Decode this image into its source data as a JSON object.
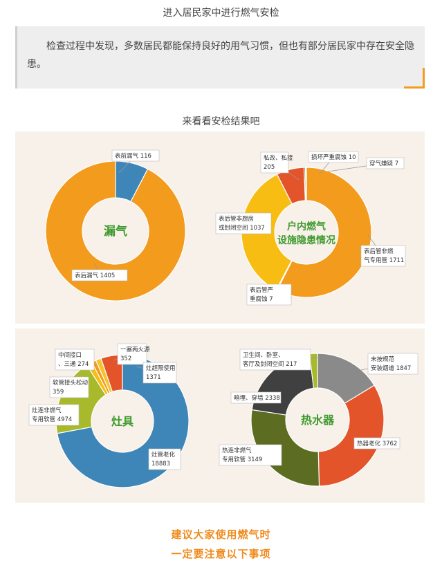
{
  "header": {
    "title": "进入居民家中进行燃气安检",
    "quote": "检查过程中发现，多数居民都能保持良好的用气习惯，但也有部分居民家中存在安全隐患。",
    "results_title": "来看看安检结果吧"
  },
  "footer": {
    "line1": "建议大家使用燃气时",
    "line2": "一定要注意以下事项"
  },
  "colors": {
    "orange": "#f39b1d",
    "blue": "#3f86b8",
    "yellow": "#f7bd12",
    "red": "#e3542b",
    "green_light": "#a8b92c",
    "green_dark": "#5c6d21",
    "gray_dark": "#404040",
    "gray_mid": "#8a8a8a",
    "panel_bg": "#f8f1ea",
    "accent_text": "#f08a1c"
  },
  "chart_data": [
    {
      "type": "pie",
      "center_label": "漏气",
      "slices": [
        {
          "label": "表前漏气",
          "value": 116,
          "color": "#3f86b8"
        },
        {
          "label": "表后漏气",
          "value": 1405,
          "color": "#f39b1d"
        }
      ]
    },
    {
      "type": "pie",
      "center_label": "户内燃气设施隐患情况",
      "slices": [
        {
          "label": "表后管非燃气专用管",
          "value": 1711,
          "color": "#f39b1d"
        },
        {
          "label": "表后管严重腐蚀",
          "value": 7,
          "color": "#f4c430"
        },
        {
          "label": "表后管非厨房或封闭空间",
          "value": 1037,
          "color": "#f7bd12"
        },
        {
          "label": "私改、私接",
          "value": 205,
          "color": "#e3542b"
        },
        {
          "label": "损坏严重腐蚀",
          "value": 10,
          "color": "#5c6d21"
        },
        {
          "label": "穿气嫌疑",
          "value": 7,
          "color": "#8a8a8a"
        }
      ]
    },
    {
      "type": "pie",
      "center_label": "灶具",
      "slices": [
        {
          "label": "灶管老化",
          "value": 18883,
          "color": "#3f86b8"
        },
        {
          "label": "灶连非燃气专用软管",
          "value": 4974,
          "color": "#a8b92c"
        },
        {
          "label": "软管接头松动",
          "value": 359,
          "color": "#f7bd12"
        },
        {
          "label": "中间接口、三通",
          "value": 274,
          "color": "#f39b1d"
        },
        {
          "label": "一塞两火源",
          "value": 352,
          "color": "#f4c430"
        },
        {
          "label": "灶超限使用",
          "value": 1371,
          "color": "#e3542b"
        }
      ]
    },
    {
      "type": "pie",
      "center_label": "热水器",
      "slices": [
        {
          "label": "未按规范安装烟道",
          "value": 1847,
          "color": "#8a8a8a"
        },
        {
          "label": "热器老化",
          "value": 3762,
          "color": "#e3542b"
        },
        {
          "label": "热连非燃气专用软管",
          "value": 3149,
          "color": "#5c6d21"
        },
        {
          "label": "暗埋、穿墙",
          "value": 2338,
          "color": "#404040"
        },
        {
          "label": "卫生间、卧室、客厅及封闭空间",
          "value": 217,
          "color": "#a8b92c"
        }
      ]
    }
  ]
}
